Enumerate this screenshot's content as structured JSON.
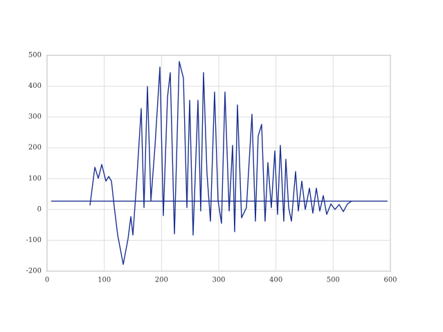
{
  "chart_data": {
    "type": "line",
    "xlim": [
      0,
      600
    ],
    "xticks": [
      0,
      100,
      200,
      300,
      400,
      500,
      600
    ],
    "ylim": [
      -200,
      500
    ],
    "yticks": [
      -200,
      -100,
      0,
      100,
      200,
      300,
      400,
      500
    ],
    "grid": true,
    "series": [
      {
        "color": "#1a2f8f",
        "x": [
          7,
          595
        ],
        "values": [
          27,
          27
        ]
      },
      {
        "color": "#1a2f8f",
        "x": [
          75,
          83.5,
          89.5,
          95.6,
          102.8,
          107.7,
          112.5,
          117.3,
          123.4,
          133.1,
          141.5,
          146.4,
          150,
          156,
          164.5,
          169.4,
          175.4,
          181.5,
          188.7,
          197.2,
          203.2,
          210.5,
          215.3,
          222.6,
          231,
          238.3,
          244.4,
          249.2,
          255.2,
          263.7,
          268.5,
          273.4,
          279.4,
          285.5,
          292.7,
          298.8,
          304.8,
          310.9,
          318.2,
          324.2,
          327.8,
          332.7,
          339.9,
          348.4,
          358.1,
          364.1,
          368.9,
          375,
          381,
          385.9,
          391.9,
          398,
          402.8,
          407.7,
          413.7,
          417.3,
          422.2,
          427,
          434.3,
          439.1,
          445.2,
          451.2,
          458.5,
          464.5,
          470.6,
          476.6,
          482.7,
          488.7,
          496,
          503.2,
          510.5,
          517.8,
          525,
          532.3
        ],
        "values": [
          13,
          137,
          101,
          146,
          92,
          107,
          92,
          10,
          -83,
          -178,
          -95,
          -23,
          -83,
          74,
          327,
          6,
          399,
          29,
          208,
          462,
          -20,
          365,
          444,
          -79,
          480,
          426,
          6,
          354,
          -83,
          354,
          -5,
          444,
          119,
          -38,
          381,
          29,
          -45,
          381,
          -5,
          208,
          -72,
          339,
          -27,
          6,
          309,
          -38,
          238,
          276,
          -38,
          152,
          6,
          190,
          -16,
          208,
          -38,
          163,
          6,
          -38,
          123,
          -5,
          92,
          0,
          69,
          -12,
          69,
          -5,
          45,
          -16,
          18,
          0,
          16,
          -7,
          18,
          27
        ]
      }
    ]
  }
}
